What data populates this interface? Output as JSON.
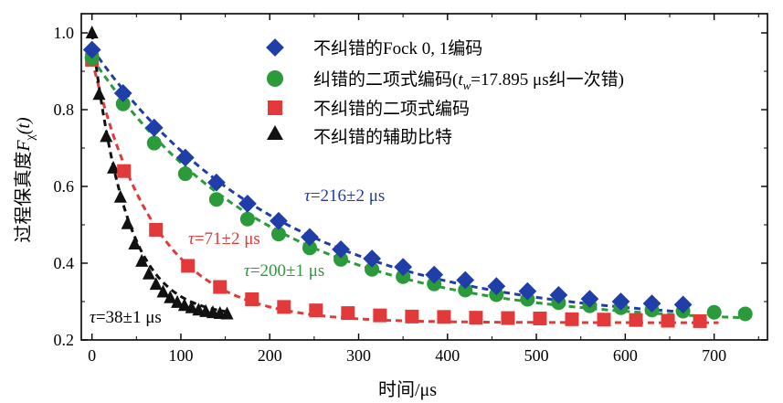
{
  "chart_data": {
    "type": "scatter",
    "title": "",
    "xlabel": "时间/μs",
    "ylabel": "过程保真度F_χ(t)",
    "ylabel_parts": {
      "main": "过程保真度",
      "var": "F",
      "sub": "χ",
      "arg": "(t)"
    },
    "xlim": [
      -12,
      760
    ],
    "ylim": [
      0.2,
      1.05
    ],
    "xticks": [
      0,
      100,
      200,
      300,
      400,
      500,
      600,
      700
    ],
    "yticks": [
      0.2,
      0.4,
      0.6,
      0.8,
      1.0
    ],
    "ytick_labels": [
      "0.2",
      "0.4",
      "0.6",
      "0.8",
      "1.0"
    ],
    "legend_position": "top-right",
    "series": [
      {
        "name": "不纠错的Fock 0, 1编码",
        "marker": "diamond",
        "color": "#1f3ea8",
        "fit": {
          "tau": 216,
          "y0": 0.96,
          "yinf": 0.24,
          "x_end": 670
        },
        "points": [
          [
            0,
            0.956
          ],
          [
            35,
            0.843
          ],
          [
            70,
            0.753
          ],
          [
            105,
            0.675
          ],
          [
            140,
            0.61
          ],
          [
            175,
            0.555
          ],
          [
            210,
            0.51
          ],
          [
            245,
            0.468
          ],
          [
            280,
            0.436
          ],
          [
            315,
            0.412
          ],
          [
            350,
            0.39
          ],
          [
            385,
            0.37
          ],
          [
            420,
            0.356
          ],
          [
            455,
            0.34
          ],
          [
            490,
            0.327
          ],
          [
            525,
            0.317
          ],
          [
            560,
            0.307
          ],
          [
            595,
            0.3
          ],
          [
            630,
            0.295
          ],
          [
            665,
            0.292
          ]
        ]
      },
      {
        "name": "纠错的二项式编码",
        "name_suffix": "纠一次错)",
        "name_tw": "17.895 μs",
        "marker": "circle",
        "color": "#2a9a3a",
        "fit": {
          "tau": 200,
          "y0": 0.935,
          "yinf": 0.24,
          "x_end": 740
        },
        "points": [
          [
            0,
            0.935
          ],
          [
            35,
            0.815
          ],
          [
            70,
            0.713
          ],
          [
            105,
            0.633
          ],
          [
            140,
            0.566
          ],
          [
            175,
            0.515
          ],
          [
            210,
            0.476
          ],
          [
            245,
            0.44
          ],
          [
            280,
            0.41
          ],
          [
            315,
            0.384
          ],
          [
            350,
            0.365
          ],
          [
            385,
            0.346
          ],
          [
            420,
            0.33
          ],
          [
            455,
            0.318
          ],
          [
            490,
            0.306
          ],
          [
            525,
            0.297
          ],
          [
            560,
            0.289
          ],
          [
            595,
            0.284
          ],
          [
            630,
            0.278
          ],
          [
            665,
            0.275
          ],
          [
            700,
            0.272
          ],
          [
            735,
            0.268
          ]
        ]
      },
      {
        "name": "不纠错的二项式编码",
        "marker": "square",
        "color": "#e23a3a",
        "fit": {
          "tau": 71,
          "y0": 0.93,
          "yinf": 0.245,
          "x_end": 705
        },
        "points": [
          [
            0,
            0.93
          ],
          [
            36,
            0.64
          ],
          [
            72,
            0.487
          ],
          [
            108,
            0.393
          ],
          [
            144,
            0.338
          ],
          [
            180,
            0.306
          ],
          [
            216,
            0.286
          ],
          [
            252,
            0.277
          ],
          [
            288,
            0.27
          ],
          [
            324,
            0.264
          ],
          [
            360,
            0.261
          ],
          [
            396,
            0.26
          ],
          [
            432,
            0.258
          ],
          [
            468,
            0.257
          ],
          [
            504,
            0.256
          ],
          [
            540,
            0.254
          ],
          [
            576,
            0.253
          ],
          [
            612,
            0.252
          ],
          [
            648,
            0.25
          ],
          [
            684,
            0.249
          ]
        ]
      },
      {
        "name": "不纠错的辅助比特",
        "marker": "triangle",
        "color": "#111111",
        "fit": {
          "tau": 38,
          "y0": 1.0,
          "yinf": 0.26,
          "x_end": 155
        },
        "points": [
          [
            0,
            1.0
          ],
          [
            8,
            0.84
          ],
          [
            16,
            0.73
          ],
          [
            24,
            0.648
          ],
          [
            32,
            0.572
          ],
          [
            40,
            0.503
          ],
          [
            48,
            0.45
          ],
          [
            56,
            0.405
          ],
          [
            64,
            0.372
          ],
          [
            72,
            0.345
          ],
          [
            80,
            0.325
          ],
          [
            88,
            0.31
          ],
          [
            96,
            0.298
          ],
          [
            104,
            0.29
          ],
          [
            112,
            0.284
          ],
          [
            120,
            0.278
          ],
          [
            128,
            0.274
          ],
          [
            136,
            0.271
          ],
          [
            144,
            0.269
          ],
          [
            152,
            0.268
          ]
        ]
      }
    ],
    "annotations": [
      {
        "series": 0,
        "text": "τ=216±2 μs",
        "tau_sym": "τ",
        "rest": "=216±2 μs",
        "at": [
          275,
          0.595
        ]
      },
      {
        "series": 2,
        "text": "τ=71±2 μs",
        "tau_sym": "τ",
        "rest": "=71±2 μs",
        "at": [
          148,
          0.455
        ]
      },
      {
        "series": 1,
        "text": "τ=200±1 μs",
        "tau_sym": "τ",
        "rest": "=200±1 μs",
        "at": [
          235,
          0.385
        ]
      },
      {
        "series": 3,
        "text": "τ=38±1 μs",
        "tau_sym": "τ",
        "rest": "=38±1 μs",
        "at": [
          -9,
          0.228
        ]
      }
    ]
  }
}
